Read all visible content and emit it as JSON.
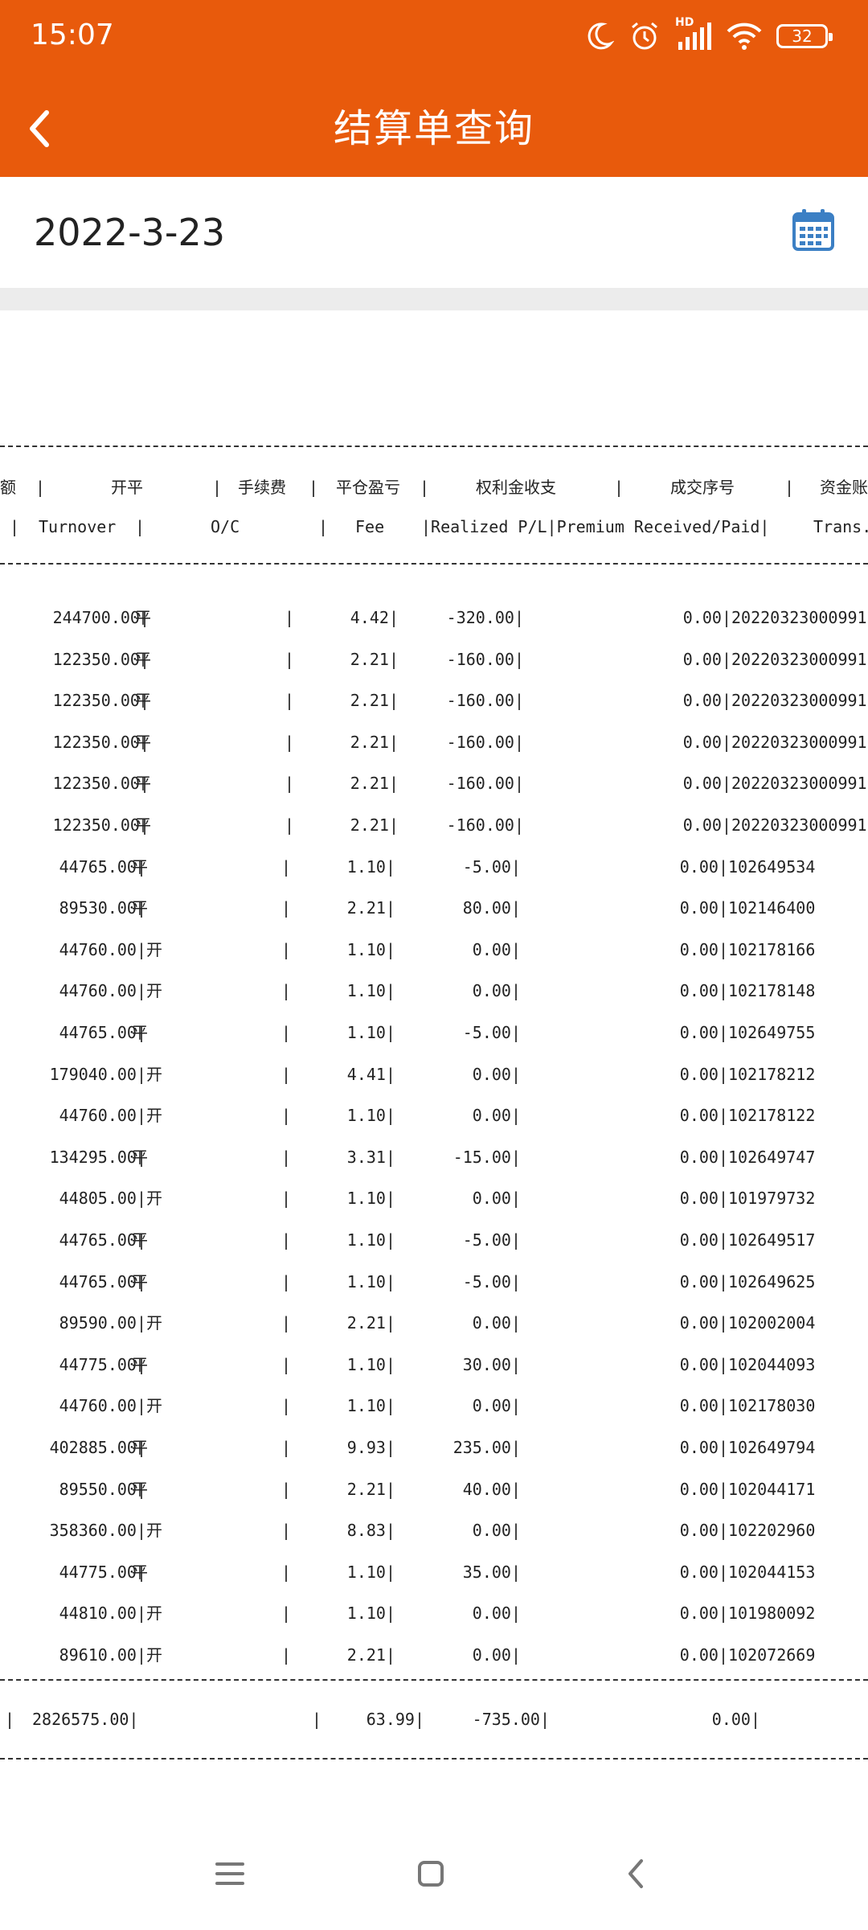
{
  "status_bar": {
    "time": "15:07",
    "network": "HD",
    "battery": "32"
  },
  "header": {
    "title": "结算单查询"
  },
  "date": "2022-3-23",
  "table": {
    "headers_cn": {
      "turnover_prefix": "额",
      "oc": "开平",
      "fee": "手续费",
      "pl": "平仓盈亏",
      "premium": "权利金收支",
      "trade_no": "成交序号",
      "trans": "资金账"
    },
    "headers_en": {
      "turnover": "Turnover",
      "oc": "O/C",
      "fee": "Fee",
      "pl": "|Realized P/L|Premium Received/Paid|",
      "trans": "Trans."
    },
    "rows": [
      {
        "turnover": "244700.00|",
        "oc": "平",
        "fee": "4.42|",
        "pl": "-320.00|",
        "premium": "0.00|",
        "trade_no": "20220323000991"
      },
      {
        "turnover": "122350.00|",
        "oc": "平",
        "fee": "2.21|",
        "pl": "-160.00|",
        "premium": "0.00|",
        "trade_no": "20220323000991"
      },
      {
        "turnover": "122350.00|",
        "oc": "平",
        "fee": "2.21|",
        "pl": "-160.00|",
        "premium": "0.00|",
        "trade_no": "20220323000991"
      },
      {
        "turnover": "122350.00|",
        "oc": "平",
        "fee": "2.21|",
        "pl": "-160.00|",
        "premium": "0.00|",
        "trade_no": "20220323000991"
      },
      {
        "turnover": "122350.00|",
        "oc": "平",
        "fee": "2.21|",
        "pl": "-160.00|",
        "premium": "0.00|",
        "trade_no": "20220323000991"
      },
      {
        "turnover": "122350.00|",
        "oc": "平",
        "fee": "2.21|",
        "pl": "-160.00|",
        "premium": "0.00|",
        "trade_no": "20220323000991"
      },
      {
        "turnover": "44765.00|",
        "oc": "平",
        "fee": "1.10|",
        "pl": "-5.00|",
        "premium": "0.00|",
        "trade_no": "102649534"
      },
      {
        "turnover": "89530.00|",
        "oc": "平",
        "fee": "2.21|",
        "pl": "80.00|",
        "premium": "0.00|",
        "trade_no": "102146400"
      },
      {
        "turnover": "44760.00|",
        "oc": "开",
        "fee": "1.10|",
        "pl": "0.00|",
        "premium": "0.00|",
        "trade_no": "102178166"
      },
      {
        "turnover": "44760.00|",
        "oc": "开",
        "fee": "1.10|",
        "pl": "0.00|",
        "premium": "0.00|",
        "trade_no": "102178148"
      },
      {
        "turnover": "44765.00|",
        "oc": "平",
        "fee": "1.10|",
        "pl": "-5.00|",
        "premium": "0.00|",
        "trade_no": "102649755"
      },
      {
        "turnover": "179040.00|",
        "oc": "开",
        "fee": "4.41|",
        "pl": "0.00|",
        "premium": "0.00|",
        "trade_no": "102178212"
      },
      {
        "turnover": "44760.00|",
        "oc": "开",
        "fee": "1.10|",
        "pl": "0.00|",
        "premium": "0.00|",
        "trade_no": "102178122"
      },
      {
        "turnover": "134295.00|",
        "oc": "平",
        "fee": "3.31|",
        "pl": "-15.00|",
        "premium": "0.00|",
        "trade_no": "102649747"
      },
      {
        "turnover": "44805.00|",
        "oc": "开",
        "fee": "1.10|",
        "pl": "0.00|",
        "premium": "0.00|",
        "trade_no": "101979732"
      },
      {
        "turnover": "44765.00|",
        "oc": "平",
        "fee": "1.10|",
        "pl": "-5.00|",
        "premium": "0.00|",
        "trade_no": "102649517"
      },
      {
        "turnover": "44765.00|",
        "oc": "平",
        "fee": "1.10|",
        "pl": "-5.00|",
        "premium": "0.00|",
        "trade_no": "102649625"
      },
      {
        "turnover": "89590.00|",
        "oc": "开",
        "fee": "2.21|",
        "pl": "0.00|",
        "premium": "0.00|",
        "trade_no": "102002004"
      },
      {
        "turnover": "44775.00|",
        "oc": "平",
        "fee": "1.10|",
        "pl": "30.00|",
        "premium": "0.00|",
        "trade_no": "102044093"
      },
      {
        "turnover": "44760.00|",
        "oc": "开",
        "fee": "1.10|",
        "pl": "0.00|",
        "premium": "0.00|",
        "trade_no": "102178030"
      },
      {
        "turnover": "402885.00|",
        "oc": "平",
        "fee": "9.93|",
        "pl": "235.00|",
        "premium": "0.00|",
        "trade_no": "102649794"
      },
      {
        "turnover": "89550.00|",
        "oc": "平",
        "fee": "2.21|",
        "pl": "40.00|",
        "premium": "0.00|",
        "trade_no": "102044171"
      },
      {
        "turnover": "358360.00|",
        "oc": "开",
        "fee": "8.83|",
        "pl": "0.00|",
        "premium": "0.00|",
        "trade_no": "102202960"
      },
      {
        "turnover": "44775.00|",
        "oc": "平",
        "fee": "1.10|",
        "pl": "35.00|",
        "premium": "0.00|",
        "trade_no": "102044153"
      },
      {
        "turnover": "44810.00|",
        "oc": "开",
        "fee": "1.10|",
        "pl": "0.00|",
        "premium": "0.00|",
        "trade_no": "101980092"
      },
      {
        "turnover": "89610.00|",
        "oc": "开",
        "fee": "2.21|",
        "pl": "0.00|",
        "premium": "0.00|",
        "trade_no": "102072669"
      }
    ],
    "total": {
      "turnover": "2826575.00|",
      "fee": "63.99|",
      "pl": "-735.00|",
      "premium": "0.00|"
    }
  }
}
